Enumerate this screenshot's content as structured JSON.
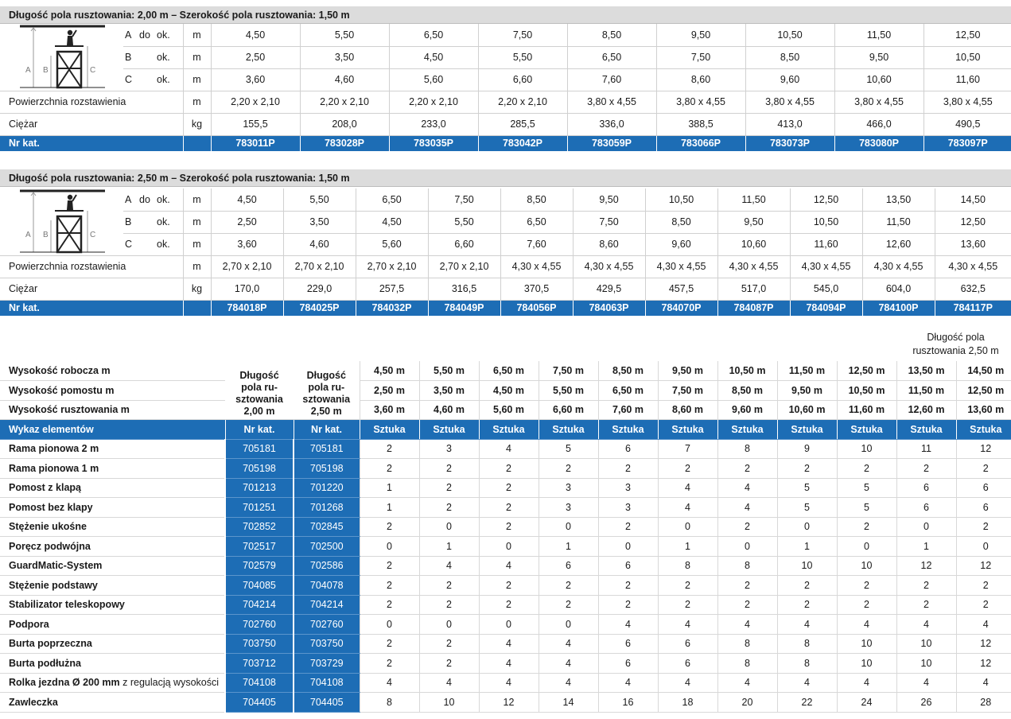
{
  "section1": {
    "title": "Długość pola rusztowania: 2,00 m – Szerokość pola rusztowania: 1,50 m",
    "dims": [
      {
        "code": "A",
        "pre": "do",
        "suf": "ok.",
        "unit": "m",
        "values": [
          "4,50",
          "5,50",
          "6,50",
          "7,50",
          "8,50",
          "9,50",
          "10,50",
          "11,50",
          "12,50"
        ]
      },
      {
        "code": "B",
        "pre": "",
        "suf": "ok.",
        "unit": "m",
        "values": [
          "2,50",
          "3,50",
          "4,50",
          "5,50",
          "6,50",
          "7,50",
          "8,50",
          "9,50",
          "10,50"
        ]
      },
      {
        "code": "C",
        "pre": "",
        "suf": "ok.",
        "unit": "m",
        "values": [
          "3,60",
          "4,60",
          "5,60",
          "6,60",
          "7,60",
          "8,60",
          "9,60",
          "10,60",
          "11,60"
        ]
      }
    ],
    "area": {
      "label": "Powierzchnia rozstawienia",
      "unit": "m",
      "values": [
        "2,20 x 2,10",
        "2,20 x 2,10",
        "2,20 x 2,10",
        "2,20 x 2,10",
        "3,80 x 4,55",
        "3,80 x 4,55",
        "3,80 x 4,55",
        "3,80 x 4,55",
        "3,80 x 4,55"
      ]
    },
    "weight": {
      "label": "Ciężar",
      "unit": "kg",
      "values": [
        "155,5",
        "208,0",
        "233,0",
        "285,5",
        "336,0",
        "388,5",
        "413,0",
        "466,0",
        "490,5"
      ]
    },
    "nrkat": {
      "label": "Nr kat.",
      "values": [
        "783011P",
        "783028P",
        "783035P",
        "783042P",
        "783059P",
        "783066P",
        "783073P",
        "783080P",
        "783097P"
      ]
    }
  },
  "section2": {
    "title": "Długość pola rusztowania: 2,50 m – Szerokość pola rusztowania: 1,50 m",
    "dims": [
      {
        "code": "A",
        "pre": "do",
        "suf": "ok.",
        "unit": "m",
        "values": [
          "4,50",
          "5,50",
          "6,50",
          "7,50",
          "8,50",
          "9,50",
          "10,50",
          "11,50",
          "12,50",
          "13,50",
          "14,50"
        ]
      },
      {
        "code": "B",
        "pre": "",
        "suf": "ok.",
        "unit": "m",
        "values": [
          "2,50",
          "3,50",
          "4,50",
          "5,50",
          "6,50",
          "7,50",
          "8,50",
          "9,50",
          "10,50",
          "11,50",
          "12,50"
        ]
      },
      {
        "code": "C",
        "pre": "",
        "suf": "ok.",
        "unit": "m",
        "values": [
          "3,60",
          "4,60",
          "5,60",
          "6,60",
          "7,60",
          "8,60",
          "9,60",
          "10,60",
          "11,60",
          "12,60",
          "13,60"
        ]
      }
    ],
    "area": {
      "label": "Powierzchnia rozstawienia",
      "unit": "m",
      "values": [
        "2,70 x 2,10",
        "2,70 x 2,10",
        "2,70 x 2,10",
        "2,70 x 2,10",
        "4,30 x 4,55",
        "4,30 x 4,55",
        "4,30 x 4,55",
        "4,30 x 4,55",
        "4,30 x 4,55",
        "4,30 x 4,55",
        "4,30 x 4,55"
      ]
    },
    "weight": {
      "label": "Ciężar",
      "unit": "kg",
      "values": [
        "170,0",
        "229,0",
        "257,5",
        "316,5",
        "370,5",
        "429,5",
        "457,5",
        "517,0",
        "545,0",
        "604,0",
        "632,5"
      ]
    },
    "nrkat": {
      "label": "Nr kat.",
      "values": [
        "784018P",
        "784025P",
        "784032P",
        "784049P",
        "784056P",
        "784063P",
        "784070P",
        "784087P",
        "784094P",
        "784100P",
        "784117P"
      ]
    }
  },
  "figure": {
    "labels": [
      "A",
      "B",
      "C"
    ]
  },
  "parts": {
    "note": "Długość pola rusztowania 2,50 m",
    "col_200": "Długość pola ru-sztowania 2,00 m",
    "col_250": "Długość pola ru-sztowania 2,50 m",
    "col_200_lines": [
      "Długość",
      "pola ru-",
      "sztowania",
      "2,00 m"
    ],
    "col_250_lines": [
      "Długość",
      "pola ru-",
      "sztowania",
      "2,50 m"
    ],
    "note_lines": [
      "Długość pola",
      "rusztowania 2,50 m"
    ],
    "height_rows": [
      {
        "label": "Wysokość robocza m",
        "values": [
          "4,50 m",
          "5,50 m",
          "6,50 m",
          "7,50 m",
          "8,50 m",
          "9,50 m",
          "10,50 m",
          "11,50 m",
          "12,50 m",
          "13,50 m",
          "14,50 m"
        ]
      },
      {
        "label": "Wysokość pomostu m",
        "values": [
          "2,50 m",
          "3,50 m",
          "4,50 m",
          "5,50 m",
          "6,50 m",
          "7,50 m",
          "8,50 m",
          "9,50 m",
          "10,50 m",
          "11,50 m",
          "12,50 m"
        ]
      },
      {
        "label": "Wysokość rusztowania m",
        "values": [
          "3,60 m",
          "4,60 m",
          "5,60 m",
          "6,60 m",
          "7,60 m",
          "8,60 m",
          "9,60 m",
          "10,60 m",
          "11,60 m",
          "12,60 m",
          "13,60 m"
        ]
      }
    ],
    "header": {
      "label": "Wykaz elementów",
      "kat1": "Nr kat.",
      "kat2": "Nr kat.",
      "unit": "Sztuka"
    },
    "items": [
      {
        "name": "Rama pionowa 2 m",
        "extra": "",
        "kat1": "705181",
        "kat2": "705181",
        "q": [
          "2",
          "3",
          "4",
          "5",
          "6",
          "7",
          "8",
          "9",
          "10",
          "11",
          "12"
        ]
      },
      {
        "name": "Rama pionowa 1 m",
        "extra": "",
        "kat1": "705198",
        "kat2": "705198",
        "q": [
          "2",
          "2",
          "2",
          "2",
          "2",
          "2",
          "2",
          "2",
          "2",
          "2",
          "2"
        ]
      },
      {
        "name": "Pomost z klapą",
        "extra": "",
        "kat1": "701213",
        "kat2": "701220",
        "q": [
          "1",
          "2",
          "2",
          "3",
          "3",
          "4",
          "4",
          "5",
          "5",
          "6",
          "6"
        ]
      },
      {
        "name": "Pomost bez klapy",
        "extra": "",
        "kat1": "701251",
        "kat2": "701268",
        "q": [
          "1",
          "2",
          "2",
          "3",
          "3",
          "4",
          "4",
          "5",
          "5",
          "6",
          "6"
        ]
      },
      {
        "name": "Stężenie ukośne",
        "extra": "",
        "kat1": "702852",
        "kat2": "702845",
        "q": [
          "2",
          "0",
          "2",
          "0",
          "2",
          "0",
          "2",
          "0",
          "2",
          "0",
          "2"
        ]
      },
      {
        "name": "Poręcz podwójna",
        "extra": "",
        "kat1": "702517",
        "kat2": "702500",
        "q": [
          "0",
          "1",
          "0",
          "1",
          "0",
          "1",
          "0",
          "1",
          "0",
          "1",
          "0"
        ]
      },
      {
        "name": "GuardMatic-System",
        "extra": "",
        "kat1": "702579",
        "kat2": "702586",
        "q": [
          "2",
          "4",
          "4",
          "6",
          "6",
          "8",
          "8",
          "10",
          "10",
          "12",
          "12"
        ]
      },
      {
        "name": "Stężenie podstawy",
        "extra": "",
        "kat1": "704085",
        "kat2": "704078",
        "q": [
          "2",
          "2",
          "2",
          "2",
          "2",
          "2",
          "2",
          "2",
          "2",
          "2",
          "2"
        ]
      },
      {
        "name": "Stabilizator teleskopowy",
        "extra": "",
        "kat1": "704214",
        "kat2": "704214",
        "q": [
          "2",
          "2",
          "2",
          "2",
          "2",
          "2",
          "2",
          "2",
          "2",
          "2",
          "2"
        ]
      },
      {
        "name": "Podpora",
        "extra": "",
        "kat1": "702760",
        "kat2": "702760",
        "q": [
          "0",
          "0",
          "0",
          "0",
          "4",
          "4",
          "4",
          "4",
          "4",
          "4",
          "4"
        ]
      },
      {
        "name": "Burta poprzeczna",
        "extra": "",
        "kat1": "703750",
        "kat2": "703750",
        "q": [
          "2",
          "2",
          "4",
          "4",
          "6",
          "6",
          "8",
          "8",
          "10",
          "10",
          "12"
        ]
      },
      {
        "name": "Burta podłużna",
        "extra": "",
        "kat1": "703712",
        "kat2": "703729",
        "q": [
          "2",
          "2",
          "4",
          "4",
          "6",
          "6",
          "8",
          "8",
          "10",
          "10",
          "12"
        ]
      },
      {
        "name": "Rolka jezdna Ø 200 mm",
        "extra": " z regulacją wysokości",
        "kat1": "704108",
        "kat2": "704108",
        "q": [
          "4",
          "4",
          "4",
          "4",
          "4",
          "4",
          "4",
          "4",
          "4",
          "4",
          "4"
        ]
      },
      {
        "name": "Zawleczka",
        "extra": "",
        "kat1": "704405",
        "kat2": "704405",
        "q": [
          "8",
          "10",
          "12",
          "14",
          "16",
          "18",
          "20",
          "22",
          "24",
          "26",
          "28"
        ]
      }
    ]
  }
}
